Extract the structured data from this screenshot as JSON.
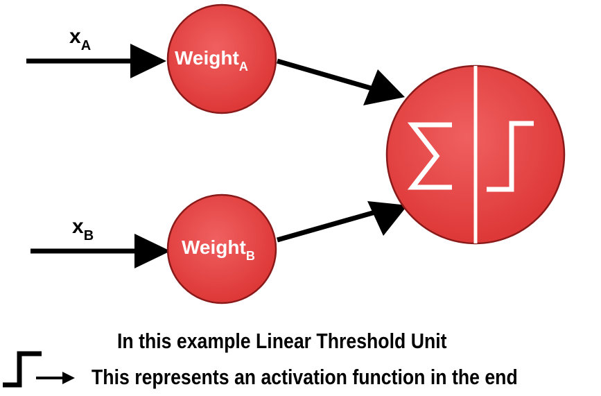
{
  "inputs": {
    "a": {
      "var": "x",
      "sub": "A"
    },
    "b": {
      "var": "x",
      "sub": "B"
    }
  },
  "weights": {
    "a": {
      "label": "Weight",
      "sub": "A"
    },
    "b": {
      "label": "Weight",
      "sub": "B"
    }
  },
  "unit": {
    "sum_symbol": "Σ",
    "activation_icon": "step-function-icon"
  },
  "caption": {
    "line1": "In this example Linear Threshold Unit",
    "line2": "This represents an activation function in the end"
  },
  "colors": {
    "node_fill": "#e84848",
    "node_stroke": "#8a1a1a",
    "arrow": "#000000",
    "symbol": "#ffffff"
  }
}
